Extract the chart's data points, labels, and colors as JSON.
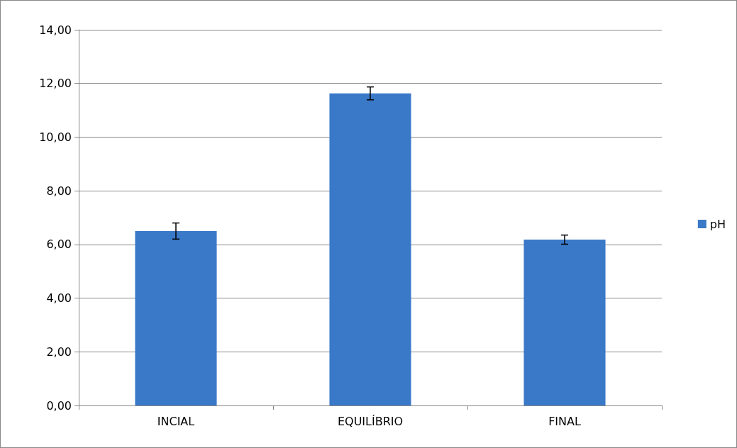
{
  "chart_data": {
    "type": "bar",
    "categories": [
      "INCIAL",
      "EQUILÍBRIO",
      "FINAL"
    ],
    "series": [
      {
        "name": "pH",
        "color": "#3a78c8",
        "values": [
          6.5,
          11.63,
          6.18
        ],
        "errors": [
          0.3,
          0.24,
          0.17
        ]
      }
    ],
    "ylim": [
      0,
      14
    ],
    "yticks": [
      {
        "value": 0,
        "label": "0,00"
      },
      {
        "value": 2,
        "label": "2,00"
      },
      {
        "value": 4,
        "label": "4,00"
      },
      {
        "value": 6,
        "label": "6,00"
      },
      {
        "value": 8,
        "label": "8,00"
      },
      {
        "value": 10,
        "label": "10,00"
      },
      {
        "value": 12,
        "label": "12,00"
      },
      {
        "value": 14,
        "label": "14,00"
      }
    ],
    "grid": "y",
    "legend": "right"
  }
}
